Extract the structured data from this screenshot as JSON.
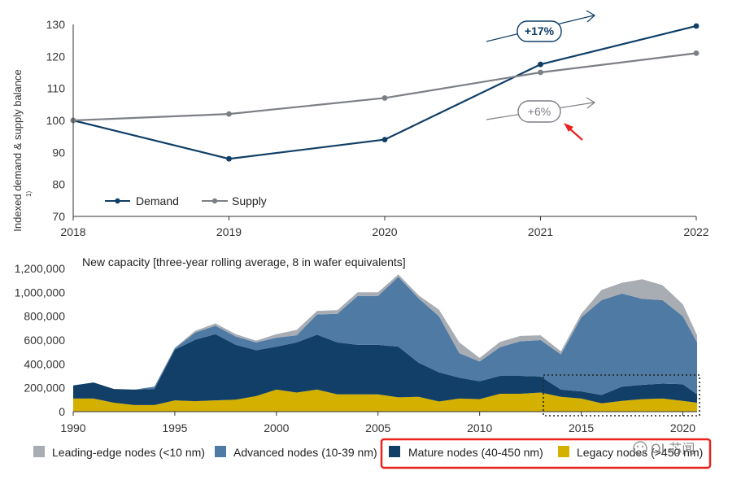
{
  "chart_data": [
    {
      "type": "line",
      "title": "",
      "xlabel": "",
      "ylabel": "Indexed demand & supply balance",
      "ylabel_note": "1)",
      "categories": [
        "2018",
        "2019",
        "2020",
        "2021",
        "2022"
      ],
      "ylim": [
        70,
        130
      ],
      "yticks": [
        70,
        80,
        90,
        100,
        110,
        120,
        130
      ],
      "series": [
        {
          "name": "Demand",
          "values": [
            100,
            88,
            94,
            117.5,
            129.5
          ],
          "color": "#0f3e66"
        },
        {
          "name": "Supply",
          "values": [
            100,
            102,
            107,
            115,
            121
          ],
          "color": "#7c7f85"
        }
      ],
      "annotations": [
        {
          "text": "+17%",
          "series": "Demand"
        },
        {
          "text": "+6%",
          "series": "Supply"
        }
      ],
      "legend": "bottom-left"
    },
    {
      "type": "area",
      "stacked": true,
      "title": "New capacity [three-year rolling average, 8 in wafer equivalents]",
      "x": [
        1990,
        1991,
        1992,
        1993,
        1994,
        1995,
        1996,
        1997,
        1998,
        1999,
        2000,
        2001,
        2002,
        2003,
        2004,
        2005,
        2006,
        2007,
        2008,
        2009,
        2010,
        2011,
        2012,
        2013,
        2014,
        2015,
        2016,
        2017,
        2018,
        2019,
        2020,
        2020.7
      ],
      "xticks": [
        1990,
        1995,
        2000,
        2005,
        2010,
        2015,
        2020
      ],
      "xlim": [
        1990,
        2020.7
      ],
      "ylim": [
        0,
        1200000
      ],
      "yticks": [
        0,
        200000,
        400000,
        600000,
        800000,
        1000000,
        1200000
      ],
      "ytick_labels": [
        "0",
        "200,000",
        "400,000",
        "600,000",
        "800,000",
        "1,000,000",
        "1,200,000"
      ],
      "series": [
        {
          "name": "Legacy nodes (>450 nm)",
          "color": "#d4b000",
          "values": [
            110000,
            110000,
            75000,
            55000,
            55000,
            95000,
            88000,
            95000,
            100000,
            130000,
            185000,
            160000,
            185000,
            145000,
            145000,
            145000,
            120000,
            125000,
            85000,
            110000,
            105000,
            150000,
            150000,
            160000,
            125000,
            110000,
            70000,
            90000,
            105000,
            110000,
            90000,
            75000
          ]
        },
        {
          "name": "Mature nodes (40-450 nm)",
          "color": "#123f67",
          "values": [
            110000,
            135000,
            115000,
            130000,
            135000,
            425000,
            515000,
            555000,
            460000,
            385000,
            360000,
            420000,
            460000,
            435000,
            415000,
            415000,
            425000,
            285000,
            245000,
            175000,
            150000,
            150000,
            150000,
            135000,
            60000,
            60000,
            70000,
            120000,
            120000,
            125000,
            140000,
            70000
          ]
        },
        {
          "name": "Advanced nodes (10-39 nm)",
          "color": "#4f7aa3",
          "values": [
            0,
            0,
            0,
            0,
            20000,
            10000,
            60000,
            70000,
            70000,
            65000,
            75000,
            60000,
            170000,
            240000,
            410000,
            410000,
            585000,
            540000,
            470000,
            205000,
            165000,
            240000,
            290000,
            305000,
            295000,
            620000,
            795000,
            780000,
            720000,
            700000,
            570000,
            435000
          ]
        },
        {
          "name": "Leading-edge nodes (<10 nm)",
          "color": "#a8adb4",
          "values": [
            0,
            0,
            0,
            0,
            0,
            5000,
            15000,
            20000,
            20000,
            15000,
            30000,
            45000,
            30000,
            30000,
            30000,
            30000,
            20000,
            25000,
            55000,
            90000,
            30000,
            45000,
            45000,
            40000,
            25000,
            30000,
            85000,
            90000,
            165000,
            125000,
            100000,
            60000
          ]
        }
      ],
      "legend_order": [
        "Leading-edge nodes (<10 nm)",
        "Advanced nodes (10-39 nm)",
        "Mature nodes (40-450 nm)",
        "Legacy nodes (>450 nm)"
      ],
      "legend": "bottom"
    }
  ],
  "watermark": "OI 芯闻",
  "colors": {
    "axis": "#333333",
    "highlight": "#e8221d",
    "grid": "#dddddd"
  }
}
